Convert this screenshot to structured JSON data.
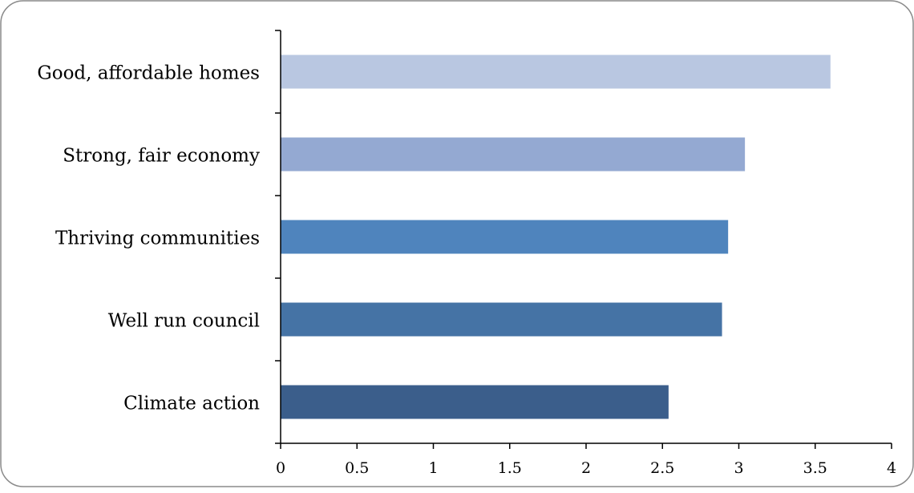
{
  "chart_data": {
    "type": "bar",
    "orientation": "horizontal",
    "categories": [
      "Good, affordable homes",
      "Strong, fair economy",
      "Thriving communities",
      "Well run council",
      "Climate action"
    ],
    "values": [
      3.6,
      3.04,
      2.93,
      2.89,
      2.54
    ],
    "bar_colors": [
      "#b9c7e1",
      "#94a9d2",
      "#4f84bd",
      "#4573a5",
      "#3b5e8b"
    ],
    "title": "",
    "xlabel": "",
    "ylabel": "",
    "xlim": [
      0,
      4
    ],
    "x_ticks": [
      0,
      0.5,
      1,
      1.5,
      2,
      2.5,
      3,
      3.5,
      4
    ],
    "x_tick_labels": [
      "0",
      "0.5",
      "1",
      "1.5",
      "2",
      "2.5",
      "3",
      "3.5",
      "4"
    ],
    "grid": false,
    "legend": "none"
  }
}
